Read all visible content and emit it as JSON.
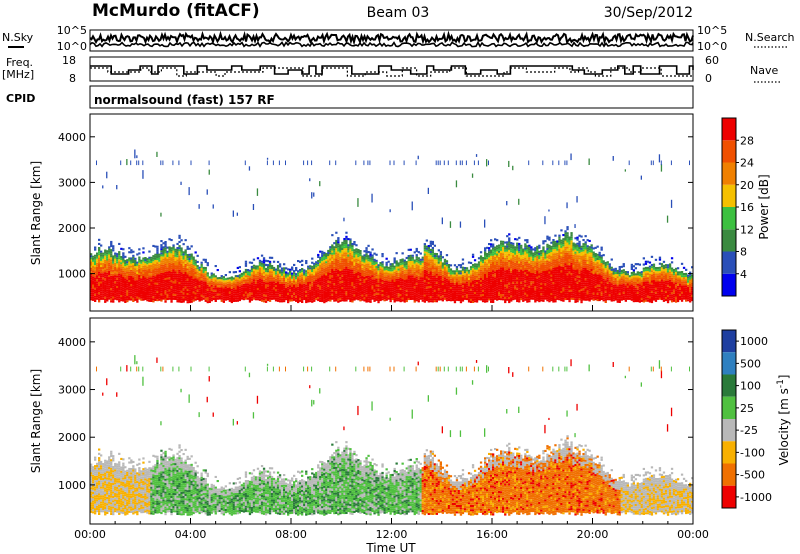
{
  "header": {
    "station": "McMurdo (fitACF)",
    "beam": "Beam 03",
    "date": "30/Sep/2012"
  },
  "noise_panel": {
    "left_label": "N.Sky",
    "right_label": "N.Search",
    "left_ticks": [
      "10^5",
      "10^0"
    ],
    "right_ticks": [
      "10^5",
      "10^0"
    ]
  },
  "freq_panel": {
    "left_label_1": "Freq.",
    "left_label_2": "[MHz]",
    "right_label": "Nave",
    "left_ticks": [
      "18",
      "8"
    ],
    "right_ticks": [
      "60",
      "0"
    ]
  },
  "cpid_panel": {
    "label": "CPID",
    "text": "normalsound (fast) 157 RF"
  },
  "colors": {
    "power": [
      "#0000ee",
      "#2a4fb8",
      "#3a8a40",
      "#3cc040",
      "#f5c000",
      "#f08000",
      "#f05000",
      "#ee0000"
    ],
    "velocity": [
      "#1f3fa0",
      "#2f80c0",
      "#2a7a3a",
      "#50c040",
      "#b8b8b8",
      "#f8b000",
      "#f07000",
      "#ee0000"
    ],
    "ground_scatter": "#b8b8b8"
  },
  "chart_data": [
    {
      "type": "heatmap",
      "name": "power",
      "xlabel": "",
      "ylabel": "Slant Range [km]",
      "xlim": [
        "00:00",
        "24:00"
      ],
      "ylim": [
        180,
        4500
      ],
      "yticks": [
        "1000",
        "2000",
        "3000",
        "4000"
      ],
      "colorbar_label": "Power [dB]",
      "colorbar_ticks": [
        "4",
        "8",
        "12",
        "16",
        "20",
        "24",
        "28"
      ],
      "colorbar_range": [
        0,
        32
      ]
    },
    {
      "type": "heatmap",
      "name": "velocity",
      "xlabel": "Time UT",
      "ylabel": "Slant Range [km]",
      "xlim": [
        "00:00",
        "24:00"
      ],
      "ylim": [
        180,
        4500
      ],
      "xticks": [
        "00:00",
        "04:00",
        "08:00",
        "12:00",
        "16:00",
        "20:00",
        "00:00"
      ],
      "yticks": [
        "1000",
        "2000",
        "3000",
        "4000"
      ],
      "colorbar_label": "Velocity [m s^-1]",
      "colorbar_ticks": [
        "1000",
        "500",
        "100",
        "25",
        "-25",
        "-100",
        "-500",
        "-1000"
      ]
    }
  ]
}
